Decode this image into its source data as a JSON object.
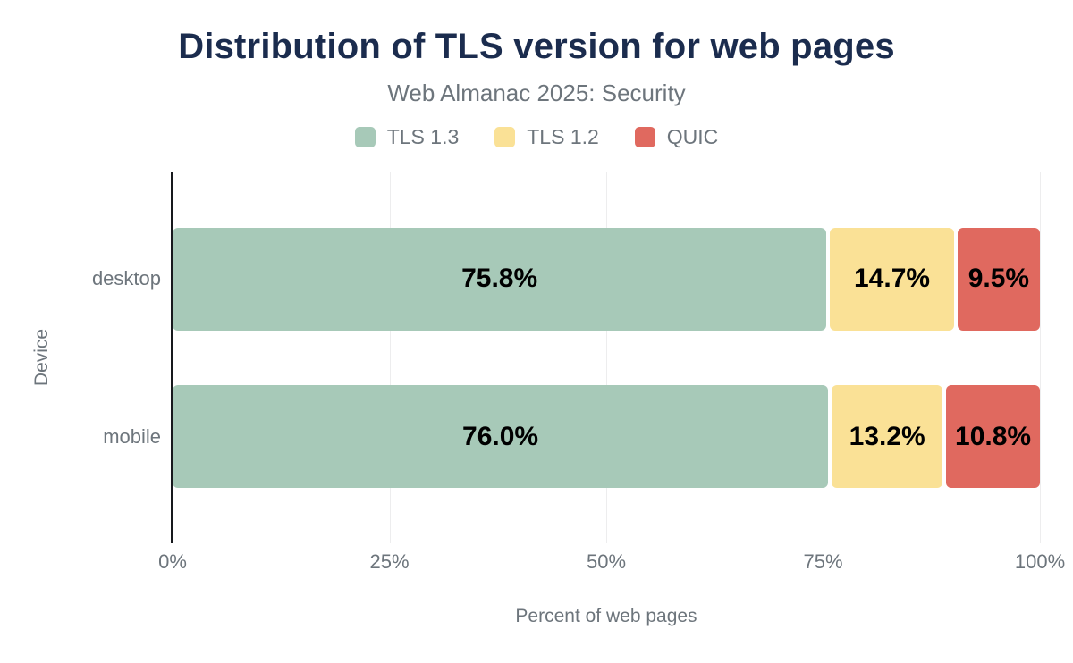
{
  "header": {
    "title": "Distribution of TLS version for web pages",
    "subtitle": "Web Almanac 2025: Security"
  },
  "legend": [
    {
      "label": "TLS 1.3",
      "color": "#a7c9b8"
    },
    {
      "label": "TLS 1.2",
      "color": "#fae196"
    },
    {
      "label": "QUIC",
      "color": "#e0695f"
    }
  ],
  "colors": {
    "title": "#1b2c4e",
    "text_gray": "#6d757c",
    "gridline": "#ededee",
    "axis_line": "#17191d",
    "value_label": "#000000",
    "background": "#ffffff"
  },
  "chart_data": {
    "type": "bar",
    "orientation": "horizontal",
    "stacked": true,
    "title": "Distribution of TLS version for web pages",
    "subtitle": "Web Almanac 2025: Security",
    "categories": [
      "desktop",
      "mobile"
    ],
    "series": [
      {
        "name": "TLS 1.3",
        "color": "#a7c9b8",
        "values": [
          75.8,
          76.0
        ]
      },
      {
        "name": "TLS 1.2",
        "color": "#fae196",
        "values": [
          14.7,
          13.2
        ]
      },
      {
        "name": "QUIC",
        "color": "#e0695f",
        "values": [
          9.5,
          10.8
        ]
      }
    ],
    "value_labels": [
      [
        "75.8%",
        "14.7%",
        "9.5%"
      ],
      [
        "76.0%",
        "13.2%",
        "10.8%"
      ]
    ],
    "xlabel": "Percent of web pages",
    "ylabel": "Device",
    "xlim": [
      0,
      100
    ],
    "xticks": [
      {
        "value": 0,
        "label": "0%"
      },
      {
        "value": 25,
        "label": "25%"
      },
      {
        "value": 50,
        "label": "50%"
      },
      {
        "value": 75,
        "label": "75%"
      },
      {
        "value": 100,
        "label": "100%"
      }
    ],
    "grid": "vertical-only",
    "legend_position": "top-center"
  }
}
